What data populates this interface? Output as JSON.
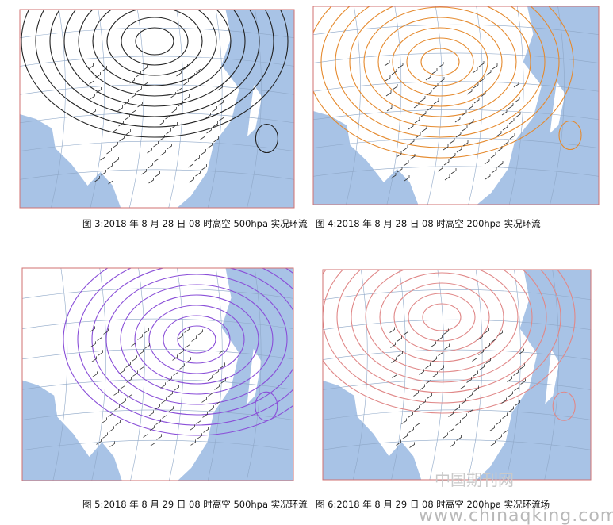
{
  "figures": [
    {
      "caption": "图 3:2018 年 8 月 28 日 08 时高空 500hpa 实况环流"
    },
    {
      "caption": "图 4:2018 年 8 月 28 日 08 时高空 200hpa 实况环流"
    },
    {
      "caption": "图 5:2018 年 8 月 29 日 08 时高空 500hpa 实况环流"
    },
    {
      "caption": "图 6:2018 年 8 月 29 日 08 时高空 200hpa 实况环流场"
    }
  ],
  "watermark": {
    "brand": "中国期刊网",
    "url": "www.chinaqking.com"
  }
}
